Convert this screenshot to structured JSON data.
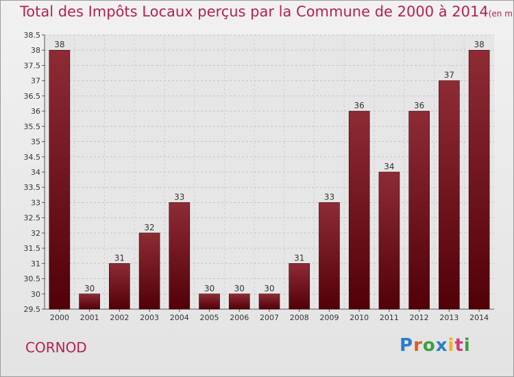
{
  "title": "Total des Impôts Locaux perçus par la Commune de 2000 à 2014",
  "title_unit": "(en milliers d'€)",
  "commune": "CORNOD",
  "logo": [
    "P",
    "r",
    "o",
    "x",
    "i",
    "t",
    "i"
  ],
  "colors": {
    "bar": "#7a0f1c",
    "bar_dark": "#520008",
    "title": "#b5204d"
  },
  "chart_data": {
    "type": "bar",
    "categories": [
      "2000",
      "2001",
      "2002",
      "2003",
      "2004",
      "2005",
      "2006",
      "2007",
      "2008",
      "2009",
      "2010",
      "2011",
      "2012",
      "2013",
      "2014"
    ],
    "values": [
      38,
      30,
      31,
      32,
      33,
      30,
      30,
      30,
      31,
      33,
      36,
      34,
      36,
      37,
      38
    ],
    "value_labels": [
      "38",
      "30",
      "31",
      "32",
      "33",
      "30",
      "30",
      "30",
      "31",
      "33",
      "36",
      "34",
      "36",
      "37",
      "38"
    ],
    "ylim": [
      29.5,
      38.5
    ],
    "yticks": [
      29.5,
      30,
      30.5,
      31,
      31.5,
      32,
      32.5,
      33,
      33.5,
      34,
      34.5,
      35,
      35.5,
      36,
      36.5,
      37,
      37.5,
      38,
      38.5
    ],
    "ytick_labels": [
      "29.5",
      "30",
      "30.5",
      "31",
      "31.5",
      "32",
      "32.5",
      "33",
      "33.5",
      "34",
      "34.5",
      "35",
      "35.5",
      "36",
      "36.5",
      "37",
      "37.5",
      "38",
      "38.5"
    ],
    "grid": true
  }
}
